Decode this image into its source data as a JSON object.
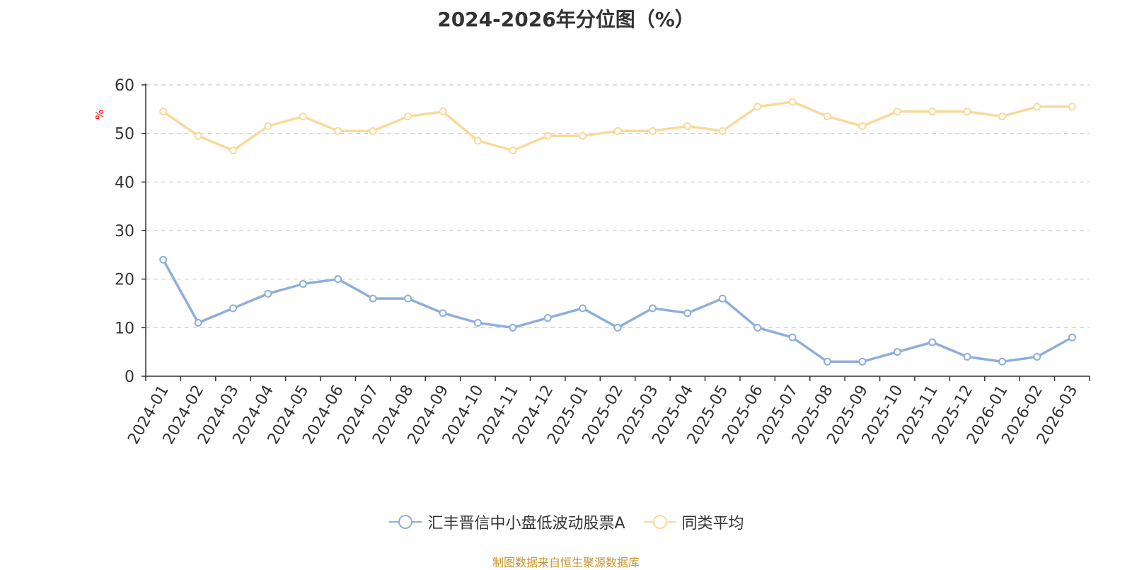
{
  "chart_data": {
    "type": "line",
    "title": "2024-2026年分位图（%）",
    "ylabel": "%",
    "xlabel": "",
    "ylim": [
      0,
      60
    ],
    "yticks": [
      0,
      10,
      20,
      30,
      40,
      50,
      60
    ],
    "grid": true,
    "legend_position": "bottom",
    "categories": [
      "2024-01",
      "2024-02",
      "2024-03",
      "2024-04",
      "2024-05",
      "2024-06",
      "2024-07",
      "2024-08",
      "2024-09",
      "2024-10",
      "2024-11",
      "2024-12",
      "2025-01",
      "2025-02",
      "2025-03",
      "2025-04",
      "2025-05",
      "2025-06",
      "2025-07",
      "2025-08",
      "2025-09",
      "2025-10",
      "2025-11",
      "2025-12",
      "2026-01",
      "2026-02",
      "2026-03"
    ],
    "series": [
      {
        "name": "汇丰晋信中小盘低波动股票A",
        "color": "#8eaedb",
        "values": [
          24,
          11,
          14,
          17,
          19,
          20,
          16,
          16,
          13,
          11,
          10,
          12,
          14,
          10,
          14,
          13,
          16,
          10,
          8,
          3,
          3,
          5,
          7,
          4,
          3,
          4,
          8
        ]
      },
      {
        "name": "同类平均",
        "color": "#f9d99a",
        "values": [
          54.5,
          49.5,
          46.5,
          51.5,
          53.5,
          50.5,
          50.5,
          53.5,
          54.5,
          48.5,
          46.5,
          49.5,
          49.5,
          50.5,
          50.5,
          51.5,
          50.5,
          55.5,
          56.5,
          53.5,
          51.5,
          54.5,
          54.5,
          54.5,
          53.5,
          55.5,
          55.5
        ]
      }
    ]
  },
  "source_note": "制图数据来自恒生聚源数据库"
}
